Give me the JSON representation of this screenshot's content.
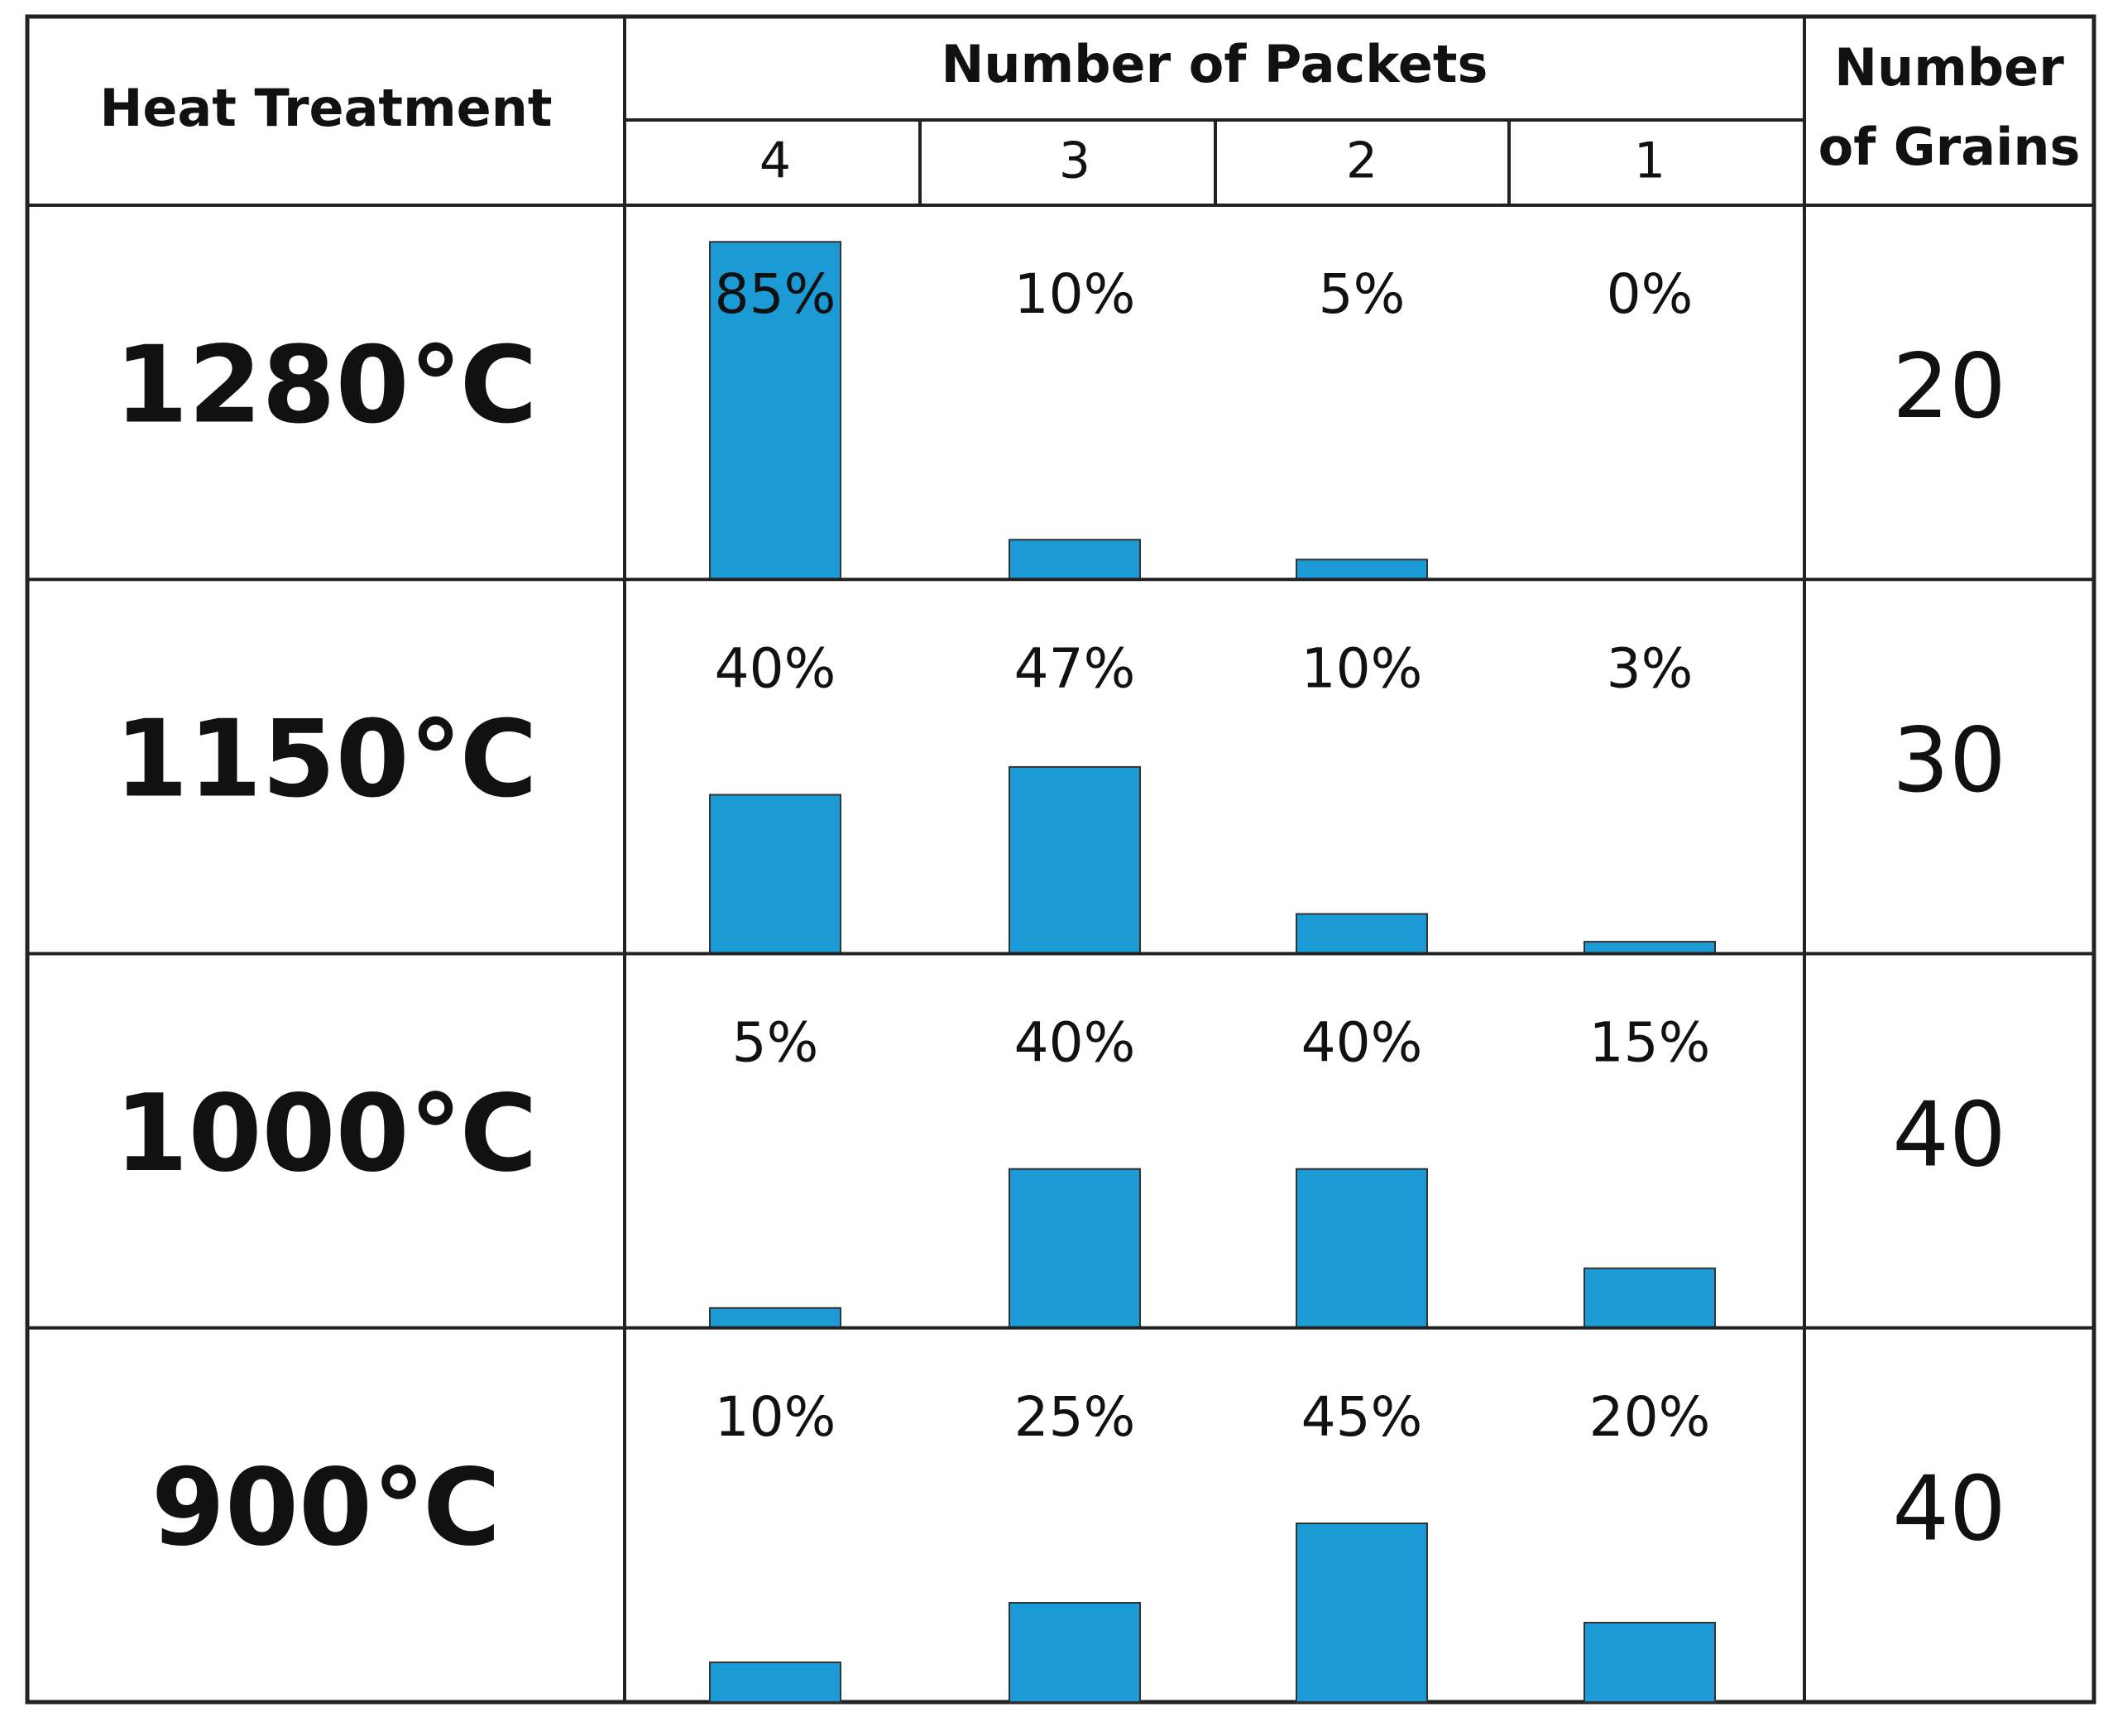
{
  "header": {
    "treatment": "Heat Treatment",
    "packets": "Number of Packets",
    "grains": "Number of Grains"
  },
  "chart_data": {
    "type": "bar",
    "color": "#1b9ad6",
    "categories": [
      "4",
      "3",
      "2",
      "1"
    ],
    "rows": [
      {
        "treatment": "1280℃",
        "values": [
          85,
          10,
          5,
          0
        ],
        "value_labels": [
          "85%",
          "10%",
          "5%",
          "0%"
        ],
        "grains": "20"
      },
      {
        "treatment": "1150℃",
        "values": [
          40,
          47,
          10,
          3
        ],
        "value_labels": [
          "40%",
          "47%",
          "10%",
          "3%"
        ],
        "grains": "30"
      },
      {
        "treatment": "1000℃",
        "values": [
          5,
          40,
          40,
          15
        ],
        "value_labels": [
          "5%",
          "40%",
          "40%",
          "15%"
        ],
        "grains": "40"
      },
      {
        "treatment": "900℃",
        "values": [
          10,
          25,
          45,
          20
        ],
        "value_labels": [
          "10%",
          "25%",
          "45%",
          "20%"
        ],
        "grains": "40"
      }
    ]
  }
}
